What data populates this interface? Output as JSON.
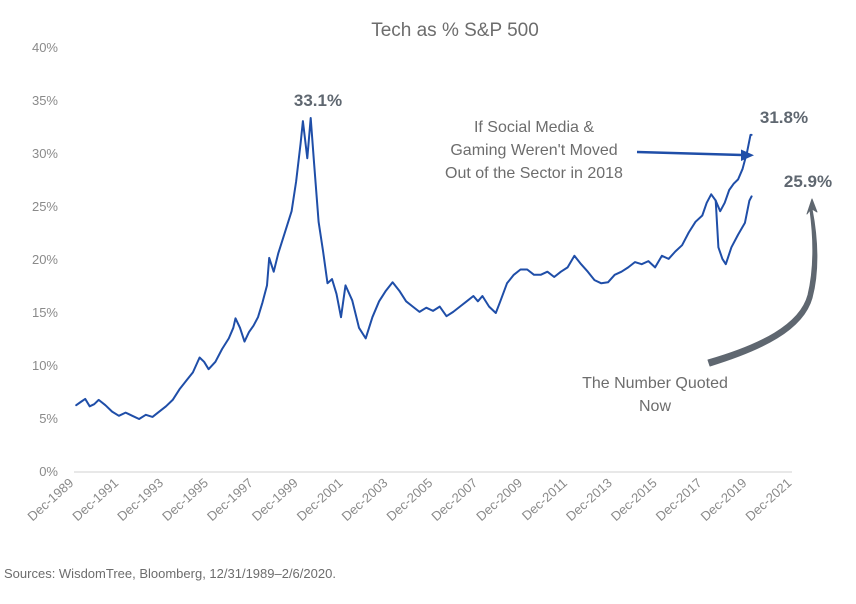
{
  "chart_data": {
    "type": "line",
    "title": "Tech as % S&P 500",
    "xlabel": "",
    "ylabel": "",
    "ylim": [
      0,
      40
    ],
    "xlim": [
      1989.9,
      2021.9
    ],
    "y_ticks": [
      "0%",
      "5%",
      "10%",
      "15%",
      "20%",
      "25%",
      "30%",
      "35%",
      "40%"
    ],
    "x_ticks": [
      "Dec-1989",
      "Dec-1991",
      "Dec-1993",
      "Dec-1995",
      "Dec-1997",
      "Dec-1999",
      "Dec-2001",
      "Dec-2003",
      "Dec-2005",
      "Dec-2007",
      "Dec-2009",
      "Dec-2011",
      "Dec-2013",
      "Dec-2015",
      "Dec-2017",
      "Dec-2019",
      "Dec-2021"
    ],
    "grid": false,
    "legend": "none",
    "line_color": "#1f4ea8",
    "arrow_colors": {
      "social_media": "#1f4ea8",
      "number_quoted": "#5f6770"
    },
    "series": [
      {
        "values": [
          [
            1990.0,
            6.3
          ],
          [
            1990.2,
            6.6
          ],
          [
            1990.4,
            6.9
          ],
          [
            1990.6,
            6.2
          ],
          [
            1990.8,
            6.4
          ],
          [
            1991.0,
            6.8
          ],
          [
            1991.3,
            6.3
          ],
          [
            1991.6,
            5.7
          ],
          [
            1991.9,
            5.3
          ],
          [
            1992.2,
            5.6
          ],
          [
            1992.5,
            5.3
          ],
          [
            1992.8,
            5.0
          ],
          [
            1993.1,
            5.4
          ],
          [
            1993.4,
            5.2
          ],
          [
            1993.7,
            5.7
          ],
          [
            1994.0,
            6.2
          ],
          [
            1994.3,
            6.8
          ],
          [
            1994.6,
            7.8
          ],
          [
            1994.9,
            8.6
          ],
          [
            1995.2,
            9.4
          ],
          [
            1995.5,
            10.8
          ],
          [
            1995.7,
            10.4
          ],
          [
            1995.9,
            9.7
          ],
          [
            1996.2,
            10.4
          ],
          [
            1996.5,
            11.6
          ],
          [
            1996.8,
            12.6
          ],
          [
            1997.0,
            13.6
          ],
          [
            1997.1,
            14.5
          ],
          [
            1997.3,
            13.6
          ],
          [
            1997.5,
            12.3
          ],
          [
            1997.7,
            13.2
          ],
          [
            1997.9,
            13.8
          ],
          [
            1998.1,
            14.6
          ],
          [
            1998.3,
            16.0
          ],
          [
            1998.5,
            17.6
          ],
          [
            1998.6,
            20.2
          ],
          [
            1998.8,
            18.9
          ],
          [
            1999.0,
            20.6
          ],
          [
            1999.3,
            22.6
          ],
          [
            1999.6,
            24.6
          ],
          [
            1999.8,
            27.4
          ],
          [
            2000.0,
            31.0
          ],
          [
            2000.1,
            33.1
          ],
          [
            2000.3,
            29.6
          ],
          [
            2000.45,
            33.4
          ],
          [
            2000.6,
            29.1
          ],
          [
            2000.8,
            23.6
          ],
          [
            2001.0,
            20.8
          ],
          [
            2001.2,
            17.8
          ],
          [
            2001.4,
            18.2
          ],
          [
            2001.6,
            16.8
          ],
          [
            2001.8,
            14.6
          ],
          [
            2002.0,
            17.6
          ],
          [
            2002.3,
            16.2
          ],
          [
            2002.6,
            13.6
          ],
          [
            2002.9,
            12.6
          ],
          [
            2003.2,
            14.6
          ],
          [
            2003.5,
            16.1
          ],
          [
            2003.8,
            17.1
          ],
          [
            2004.1,
            17.9
          ],
          [
            2004.4,
            17.1
          ],
          [
            2004.7,
            16.1
          ],
          [
            2005.0,
            15.6
          ],
          [
            2005.3,
            15.1
          ],
          [
            2005.6,
            15.5
          ],
          [
            2005.9,
            15.2
          ],
          [
            2006.2,
            15.6
          ],
          [
            2006.5,
            14.7
          ],
          [
            2006.8,
            15.1
          ],
          [
            2007.1,
            15.6
          ],
          [
            2007.4,
            16.1
          ],
          [
            2007.7,
            16.6
          ],
          [
            2007.9,
            16.1
          ],
          [
            2008.1,
            16.6
          ],
          [
            2008.4,
            15.6
          ],
          [
            2008.7,
            15.0
          ],
          [
            2008.9,
            16.1
          ],
          [
            2009.2,
            17.8
          ],
          [
            2009.5,
            18.6
          ],
          [
            2009.8,
            19.1
          ],
          [
            2010.1,
            19.1
          ],
          [
            2010.4,
            18.6
          ],
          [
            2010.7,
            18.6
          ],
          [
            2011.0,
            18.9
          ],
          [
            2011.3,
            18.4
          ],
          [
            2011.6,
            18.9
          ],
          [
            2011.9,
            19.3
          ],
          [
            2012.2,
            20.4
          ],
          [
            2012.5,
            19.6
          ],
          [
            2012.8,
            18.9
          ],
          [
            2013.1,
            18.1
          ],
          [
            2013.4,
            17.8
          ],
          [
            2013.7,
            17.9
          ],
          [
            2014.0,
            18.6
          ],
          [
            2014.3,
            18.9
          ],
          [
            2014.6,
            19.3
          ],
          [
            2014.9,
            19.8
          ],
          [
            2015.2,
            19.6
          ],
          [
            2015.5,
            19.9
          ],
          [
            2015.8,
            19.3
          ],
          [
            2016.1,
            20.4
          ],
          [
            2016.4,
            20.1
          ],
          [
            2016.7,
            20.8
          ],
          [
            2017.0,
            21.4
          ],
          [
            2017.3,
            22.6
          ],
          [
            2017.6,
            23.6
          ],
          [
            2017.9,
            24.2
          ],
          [
            2018.1,
            25.4
          ],
          [
            2018.3,
            26.2
          ],
          [
            2018.5,
            25.6
          ],
          [
            2018.62,
            21.2
          ],
          [
            2018.8,
            20.1
          ],
          [
            2018.95,
            19.6
          ],
          [
            2019.2,
            21.2
          ],
          [
            2019.5,
            22.4
          ],
          [
            2019.8,
            23.5
          ],
          [
            2020.0,
            25.6
          ],
          [
            2020.1,
            26.0
          ]
        ]
      },
      {
        "values": [
          [
            2018.5,
            25.6
          ],
          [
            2018.7,
            24.6
          ],
          [
            2018.9,
            25.4
          ],
          [
            2019.1,
            26.6
          ],
          [
            2019.3,
            27.2
          ],
          [
            2019.5,
            27.6
          ],
          [
            2019.7,
            28.6
          ],
          [
            2019.9,
            30.2
          ],
          [
            2020.05,
            31.8
          ],
          [
            2020.1,
            31.8
          ]
        ]
      }
    ],
    "annotations": {
      "peak_value": "33.1%",
      "social_media_value": "31.8%",
      "quoted_value": "25.9%",
      "social_media_note": [
        "If Social Media &",
        "Gaming Weren't Moved",
        "Out of the Sector in 2018"
      ],
      "quoted_note": [
        "The Number Quoted",
        "Now"
      ]
    },
    "source": "Sources: WisdomTree, Bloomberg, 12/31/1989–2/6/2020."
  }
}
